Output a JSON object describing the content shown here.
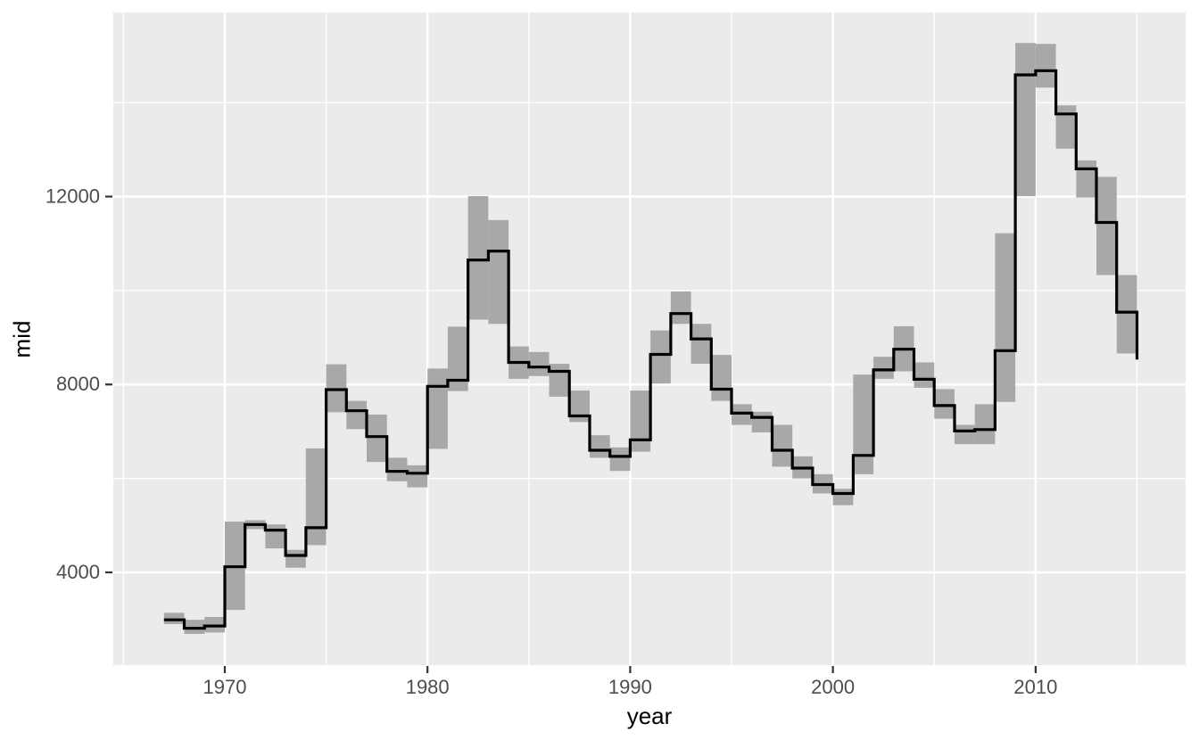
{
  "chart_data": {
    "type": "area",
    "subtype": "step-line-with-step-ribbon",
    "title": "",
    "xlabel": "year",
    "ylabel": "mid",
    "legend": "none",
    "grid": true,
    "x_ticks": [
      1970,
      1980,
      1990,
      2000,
      2010
    ],
    "x_minor_ticks": [
      1965,
      1975,
      1985,
      1995,
      2005,
      2015
    ],
    "y_ticks": [
      4000,
      8000,
      12000
    ],
    "y_minor_ticks": [
      6000,
      10000,
      14000
    ],
    "x_range": [
      1964.5,
      2017.4
    ],
    "y_range": [
      2026,
      15919
    ],
    "colors": {
      "panel_bg": "#EBEBEB",
      "grid": "#FFFFFF",
      "ribbon": "#A8A8A8",
      "line": "#000000",
      "tick_label": "#4D4D4D",
      "tick_mark": "#333333",
      "axis_title": "#000000"
    },
    "series": [
      {
        "name": "min-max ribbon",
        "role": "ribbon"
      },
      {
        "name": "mid step line",
        "role": "line"
      }
    ],
    "years": [
      {
        "year": 1967,
        "min": 2900,
        "max": 3140,
        "mid": 2990
      },
      {
        "year": 1968,
        "min": 2690,
        "max": 2990,
        "mid": 2810
      },
      {
        "year": 1969,
        "min": 2720,
        "max": 3050,
        "mid": 2860
      },
      {
        "year": 1970,
        "min": 3200,
        "max": 5080,
        "mid": 4120
      },
      {
        "year": 1971,
        "min": 4920,
        "max": 5110,
        "mid": 5020
      },
      {
        "year": 1972,
        "min": 4510,
        "max": 5020,
        "mid": 4900
      },
      {
        "year": 1973,
        "min": 4100,
        "max": 4480,
        "mid": 4360
      },
      {
        "year": 1974,
        "min": 4580,
        "max": 6640,
        "mid": 4950
      },
      {
        "year": 1975,
        "min": 7410,
        "max": 8430,
        "mid": 7890
      },
      {
        "year": 1976,
        "min": 7050,
        "max": 7650,
        "mid": 7440
      },
      {
        "year": 1977,
        "min": 6350,
        "max": 7360,
        "mid": 6890
      },
      {
        "year": 1978,
        "min": 5940,
        "max": 6440,
        "mid": 6150
      },
      {
        "year": 1979,
        "min": 5810,
        "max": 6280,
        "mid": 6110
      },
      {
        "year": 1980,
        "min": 6630,
        "max": 8340,
        "mid": 7960
      },
      {
        "year": 1981,
        "min": 7860,
        "max": 9230,
        "mid": 8090
      },
      {
        "year": 1982,
        "min": 9380,
        "max": 12010,
        "mid": 10650
      },
      {
        "year": 1983,
        "min": 9290,
        "max": 11500,
        "mid": 10840
      },
      {
        "year": 1984,
        "min": 8120,
        "max": 8810,
        "mid": 8470
      },
      {
        "year": 1985,
        "min": 8180,
        "max": 8690,
        "mid": 8370
      },
      {
        "year": 1986,
        "min": 7740,
        "max": 8440,
        "mid": 8280
      },
      {
        "year": 1987,
        "min": 7200,
        "max": 7870,
        "mid": 7330
      },
      {
        "year": 1988,
        "min": 6440,
        "max": 6920,
        "mid": 6600
      },
      {
        "year": 1989,
        "min": 6160,
        "max": 6660,
        "mid": 6470
      },
      {
        "year": 1990,
        "min": 6570,
        "max": 7870,
        "mid": 6820
      },
      {
        "year": 1991,
        "min": 8020,
        "max": 9150,
        "mid": 8640
      },
      {
        "year": 1992,
        "min": 9290,
        "max": 9980,
        "mid": 9510
      },
      {
        "year": 1993,
        "min": 8440,
        "max": 9290,
        "mid": 8970
      },
      {
        "year": 1994,
        "min": 7650,
        "max": 8630,
        "mid": 7900
      },
      {
        "year": 1995,
        "min": 7140,
        "max": 7580,
        "mid": 7390
      },
      {
        "year": 1996,
        "min": 6980,
        "max": 7420,
        "mid": 7300
      },
      {
        "year": 1997,
        "min": 6250,
        "max": 7140,
        "mid": 6600
      },
      {
        "year": 1998,
        "min": 6000,
        "max": 6470,
        "mid": 6220
      },
      {
        "year": 1999,
        "min": 5680,
        "max": 6090,
        "mid": 5870
      },
      {
        "year": 2000,
        "min": 5430,
        "max": 5780,
        "mid": 5680
      },
      {
        "year": 2001,
        "min": 6090,
        "max": 8210,
        "mid": 6490
      },
      {
        "year": 2002,
        "min": 8120,
        "max": 8590,
        "mid": 8310
      },
      {
        "year": 2003,
        "min": 8280,
        "max": 9240,
        "mid": 8750
      },
      {
        "year": 2004,
        "min": 7930,
        "max": 8470,
        "mid": 8110
      },
      {
        "year": 2005,
        "min": 7270,
        "max": 7900,
        "mid": 7550
      },
      {
        "year": 2006,
        "min": 6730,
        "max": 7140,
        "mid": 7010
      },
      {
        "year": 2007,
        "min": 6730,
        "max": 7580,
        "mid": 7040
      },
      {
        "year": 2008,
        "min": 7630,
        "max": 11220,
        "mid": 8720
      },
      {
        "year": 2009,
        "min": 12010,
        "max": 15270,
        "mid": 14590
      },
      {
        "year": 2010,
        "min": 14320,
        "max": 15250,
        "mid": 14680
      },
      {
        "year": 2011,
        "min": 13020,
        "max": 13940,
        "mid": 13760
      },
      {
        "year": 2012,
        "min": 11980,
        "max": 12770,
        "mid": 12590
      },
      {
        "year": 2013,
        "min": 10330,
        "max": 12420,
        "mid": 11450
      },
      {
        "year": 2014,
        "min": 8660,
        "max": 10330,
        "mid": 9540
      },
      {
        "year": 2015,
        "min": null,
        "max": null,
        "mid": 8530
      }
    ]
  }
}
